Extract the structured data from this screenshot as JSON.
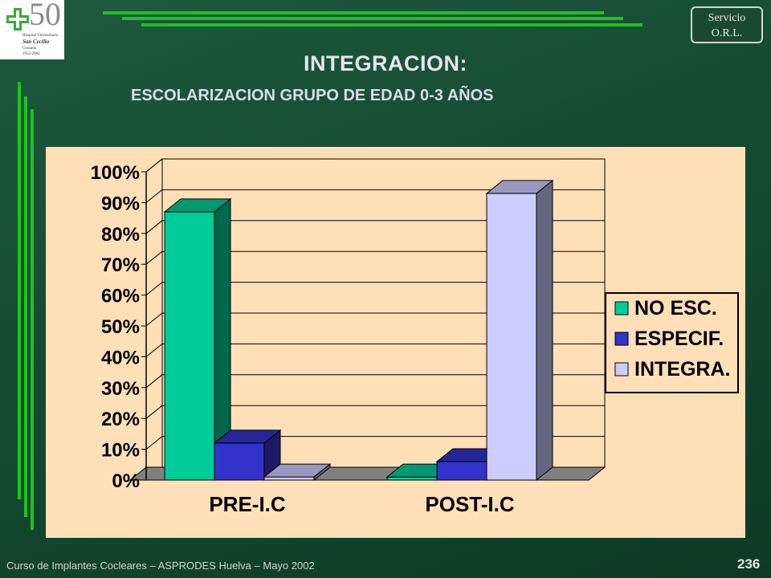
{
  "logo": {
    "number": "50",
    "line1": "Hospital Universitario",
    "line2": "San Cecilio",
    "line3": "Granada",
    "line4": "1952-2002",
    "icon": "green-cross-icon"
  },
  "badge": {
    "line1": "Servicio",
    "line2": "O.R.L."
  },
  "header": {
    "title": "INTEGRACION:",
    "subtitle": "ESCOLARIZACION GRUPO DE EDAD 0-3 AÑOS"
  },
  "footer": {
    "text": "Curso de Implantes Cocleares – ASPRODES Huelva – Mayo 2002",
    "page": "236"
  },
  "chart_data": {
    "type": "bar",
    "categories": [
      "PRE-I.C",
      "POST-I.C"
    ],
    "series": [
      {
        "name": "NO ESC.",
        "values": [
          87,
          1
        ],
        "color": "#00cc99"
      },
      {
        "name": "ESPECIF.",
        "values": [
          12,
          6
        ],
        "color": "#3333cc"
      },
      {
        "name": "INTEGRA.",
        "values": [
          1,
          93
        ],
        "color": "#ccccff"
      }
    ],
    "ylim": [
      0,
      100
    ],
    "yticks": [
      0,
      10,
      20,
      30,
      40,
      50,
      60,
      70,
      80,
      90,
      100
    ],
    "ytick_labels": [
      "0%",
      "10%",
      "20%",
      "30%",
      "40%",
      "50%",
      "60%",
      "70%",
      "80%",
      "90%",
      "100%"
    ],
    "grid": true,
    "legend": "right",
    "style": "3d"
  }
}
